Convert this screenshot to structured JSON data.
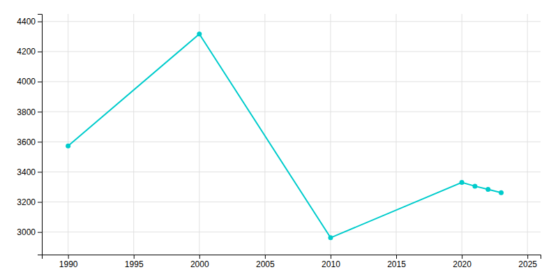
{
  "chart_data": {
    "type": "line",
    "x": [
      1990,
      2000,
      2010,
      2020,
      2021,
      2022,
      2023
    ],
    "values": [
      3572,
      4317,
      2962,
      3330,
      3305,
      3284,
      3262
    ],
    "color": "#00CCCC",
    "marker": "circle",
    "xlim": [
      1988,
      2026
    ],
    "ylim": [
      2850,
      4450
    ],
    "xticks": [
      1990,
      1995,
      2000,
      2005,
      2010,
      2015,
      2020,
      2025
    ],
    "yticks": [
      3000,
      3200,
      3400,
      3600,
      3800,
      4000,
      4200,
      4400
    ],
    "grid": true
  }
}
